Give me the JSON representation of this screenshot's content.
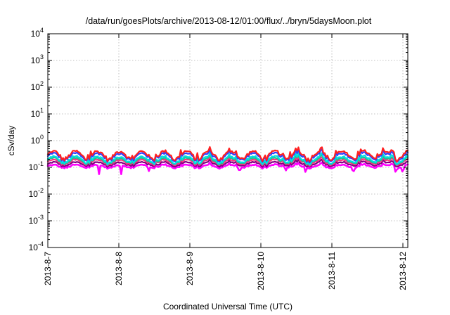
{
  "chart_data": {
    "type": "line",
    "title": "/data/run/goesPlots/archive/2013-08-12/01:00/flux/../bryn/5daysMoon.plot",
    "xlabel": "Coordinated Universal Time (UTC)",
    "ylabel": "cSv/day",
    "y_scale": "log",
    "ylim": [
      0.0001,
      10000
    ],
    "y_ticks": [
      {
        "mant": "10",
        "exp": "4"
      },
      {
        "mant": "10",
        "exp": "3"
      },
      {
        "mant": "10",
        "exp": "2"
      },
      {
        "mant": "10",
        "exp": "1"
      },
      {
        "mant": "10",
        "exp": "0"
      },
      {
        "mant": "10",
        "exp": "-1"
      },
      {
        "mant": "10",
        "exp": "-2"
      },
      {
        "mant": "10",
        "exp": "-3"
      },
      {
        "mant": "10",
        "exp": "-4"
      }
    ],
    "x_ticks": [
      "2013-8-7",
      "2013-8-8",
      "2013-8-9",
      "2013-8-10",
      "2013-8-11",
      "2013-8-12"
    ],
    "xlim": [
      "2013-08-07 00:00",
      "2013-08-12 01:00"
    ],
    "grid": true,
    "legend": "none",
    "series": [
      {
        "color": "#ff00ff",
        "level": 0.11,
        "dips": [
          {
            "day": 0.72,
            "value": 0.055
          },
          {
            "day": 1.03,
            "value": 0.05
          },
          {
            "day": 1.42,
            "value": 0.07
          },
          {
            "day": 2.7,
            "value": 0.06
          },
          {
            "day": 3.35,
            "value": 0.075
          },
          {
            "day": 3.63,
            "value": 0.065
          },
          {
            "day": 4.3,
            "value": 0.055
          },
          {
            "day": 4.9,
            "value": 0.06
          },
          {
            "day": 5.0,
            "value": 0.05
          }
        ]
      },
      {
        "color": "#800080",
        "level": 0.135
      },
      {
        "color": "#ff3080",
        "level": 0.16
      },
      {
        "color": "#20c090",
        "level": 0.18
      },
      {
        "color": "#00e0e0",
        "level": 0.2
      },
      {
        "color": "#3040ff",
        "level": 0.26
      },
      {
        "color": "#ff2020",
        "level": 0.3
      }
    ]
  }
}
